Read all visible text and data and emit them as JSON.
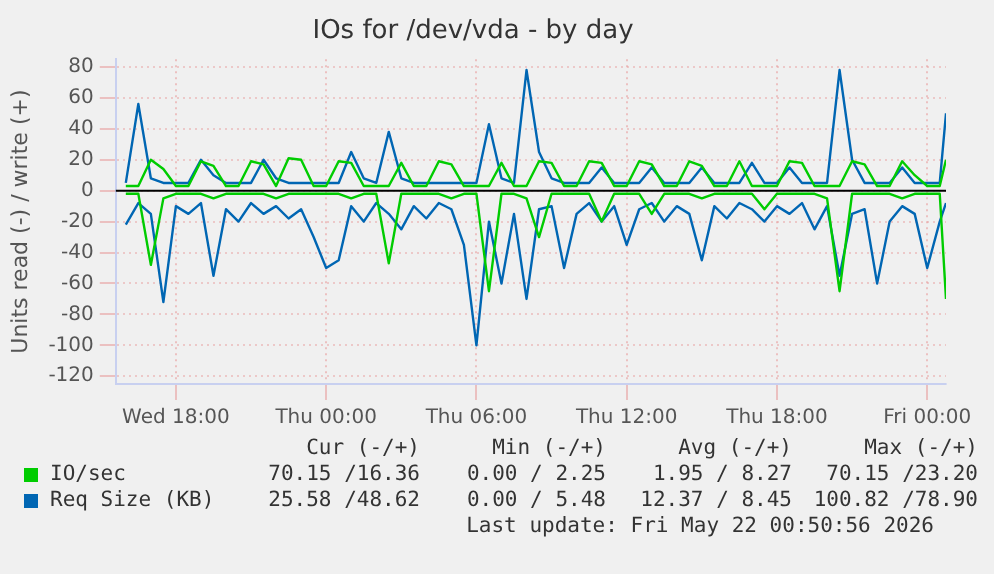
{
  "chart_data": {
    "type": "line",
    "title": "IOs for /dev/vda - by day",
    "ylabel": "Units read (-) / write (+)",
    "x": [
      "2026-05-20T16:00",
      "2026-05-20T16:30",
      "2026-05-20T17:00",
      "2026-05-20T17:30",
      "2026-05-20T18:00",
      "2026-05-20T18:30",
      "2026-05-20T19:00",
      "2026-05-20T19:30",
      "2026-05-20T20:00",
      "2026-05-20T20:30",
      "2026-05-20T21:00",
      "2026-05-20T21:30",
      "2026-05-20T22:00",
      "2026-05-20T22:30",
      "2026-05-20T23:00",
      "2026-05-20T23:30",
      "2026-05-21T00:00",
      "2026-05-21T00:30",
      "2026-05-21T01:00",
      "2026-05-21T01:30",
      "2026-05-21T02:00",
      "2026-05-21T02:30",
      "2026-05-21T03:00",
      "2026-05-21T03:30",
      "2026-05-21T04:00",
      "2026-05-21T04:30",
      "2026-05-21T05:00",
      "2026-05-21T05:30",
      "2026-05-21T06:00",
      "2026-05-21T06:30",
      "2026-05-21T07:00",
      "2026-05-21T07:30",
      "2026-05-21T08:00",
      "2026-05-21T08:30",
      "2026-05-21T09:00",
      "2026-05-21T09:30",
      "2026-05-21T10:00",
      "2026-05-21T10:30",
      "2026-05-21T11:00",
      "2026-05-21T11:30",
      "2026-05-21T12:00",
      "2026-05-21T12:30",
      "2026-05-21T13:00",
      "2026-05-21T13:30",
      "2026-05-21T14:00",
      "2026-05-21T14:30",
      "2026-05-21T15:00",
      "2026-05-21T15:30",
      "2026-05-21T16:00",
      "2026-05-21T16:30",
      "2026-05-21T17:00",
      "2026-05-21T17:30",
      "2026-05-21T18:00",
      "2026-05-21T18:30",
      "2026-05-21T19:00",
      "2026-05-21T19:30",
      "2026-05-21T20:00",
      "2026-05-21T20:30",
      "2026-05-21T21:00",
      "2026-05-21T21:30",
      "2026-05-21T22:00",
      "2026-05-21T22:30",
      "2026-05-21T23:00",
      "2026-05-21T23:30",
      "2026-05-22T00:00",
      "2026-05-22T00:30",
      "2026-05-22T00:45"
    ],
    "series": [
      {
        "name": "IO/sec",
        "color": "#00cc00",
        "values": [
          3,
          3,
          20,
          14,
          3,
          3,
          19,
          16,
          3,
          3,
          19,
          17,
          3,
          21,
          20,
          3,
          3,
          19,
          18,
          3,
          3,
          3,
          18,
          3,
          3,
          19,
          17,
          3,
          3,
          3,
          18,
          3,
          3,
          19,
          18,
          3,
          3,
          19,
          18,
          3,
          3,
          19,
          17,
          3,
          3,
          19,
          16,
          3,
          3,
          19,
          3,
          3,
          3,
          19,
          18,
          3,
          3,
          3,
          19,
          17,
          3,
          3,
          19,
          10,
          3,
          3,
          20
        ]
      },
      {
        "name": "Req Size (KB)",
        "color": "#0066b3",
        "values": [
          5,
          56,
          8,
          5,
          5,
          5,
          20,
          10,
          5,
          5,
          5,
          20,
          8,
          5,
          5,
          5,
          5,
          5,
          25,
          8,
          5,
          38,
          8,
          5,
          5,
          5,
          5,
          5,
          5,
          43,
          8,
          5,
          78,
          25,
          8,
          5,
          5,
          5,
          15,
          5,
          5,
          5,
          15,
          5,
          5,
          5,
          15,
          5,
          5,
          5,
          18,
          5,
          5,
          15,
          5,
          5,
          5,
          78,
          20,
          5,
          5,
          5,
          15,
          5,
          5,
          5,
          50
        ]
      },
      {
        "color": "#00cc00",
        "values": [
          -2,
          -2,
          -48,
          -5,
          -2,
          -2,
          -2,
          -5,
          -2,
          -2,
          -2,
          -2,
          -5,
          -2,
          -2,
          -2,
          -2,
          -2,
          -5,
          -2,
          -2,
          -47,
          -2,
          -2,
          -2,
          -2,
          -5,
          -2,
          -2,
          -65,
          -2,
          -2,
          -5,
          -30,
          -2,
          -2,
          -2,
          -2,
          -20,
          -2,
          -2,
          -2,
          -15,
          -2,
          -2,
          -2,
          -5,
          -2,
          -2,
          -2,
          -2,
          -12,
          -2,
          -2,
          -2,
          -2,
          -5,
          -65,
          -2,
          -2,
          -2,
          -2,
          -5,
          -2,
          -2,
          -2,
          -70
        ]
      },
      {
        "color": "#0066b3",
        "values": [
          -22,
          -8,
          -15,
          -72,
          -10,
          -15,
          -8,
          -55,
          -12,
          -20,
          -8,
          -15,
          -10,
          -18,
          -12,
          -30,
          -50,
          -45,
          -10,
          -20,
          -8,
          -15,
          -25,
          -10,
          -18,
          -8,
          -12,
          -35,
          -100,
          -20,
          -60,
          -15,
          -70,
          -12,
          -10,
          -50,
          -15,
          -8,
          -20,
          -10,
          -35,
          -12,
          -8,
          -20,
          -10,
          -15,
          -45,
          -10,
          -18,
          -8,
          -12,
          -20,
          -10,
          -15,
          -8,
          -25,
          -10,
          -55,
          -15,
          -12,
          -60,
          -20,
          -10,
          -15,
          -50,
          -20,
          -8
        ]
      }
    ],
    "xlim": [
      "2026-05-20T15:36",
      "2026-05-22T00:45"
    ],
    "xticks": [
      {
        "value": "2026-05-20T18:00",
        "label": "Wed 18:00"
      },
      {
        "value": "2026-05-21T00:00",
        "label": "Thu 00:00"
      },
      {
        "value": "2026-05-21T06:00",
        "label": "Thu 06:00"
      },
      {
        "value": "2026-05-21T12:00",
        "label": "Thu 12:00"
      },
      {
        "value": "2026-05-21T18:00",
        "label": "Thu 18:00"
      },
      {
        "value": "2026-05-22T00:00",
        "label": "Fri 00:00"
      }
    ],
    "ylim": [
      -125,
      85
    ],
    "yticks": [
      -120,
      -100,
      -80,
      -60,
      -40,
      -20,
      0,
      20,
      40,
      60,
      80
    ],
    "ref_lines": [
      {
        "axis": "y",
        "value": 0,
        "color": "#000000"
      }
    ],
    "grid": true,
    "legend": "bottom",
    "marker": "none",
    "line_style": "solid",
    "annotations": [
      "Cur (-/+)",
      "Min (-/+)",
      "Avg (-/+)",
      "Max (-/+)",
      "70.15 /16.36",
      "0.00 / 2.25",
      "1.95 / 8.27",
      "70.15 /23.20",
      "25.58 /48.62",
      "0.00 / 5.48",
      "12.37 / 8.45",
      "100.82 /78.90",
      "Last update: Fri May 22 00:50:56 2026"
    ]
  }
}
